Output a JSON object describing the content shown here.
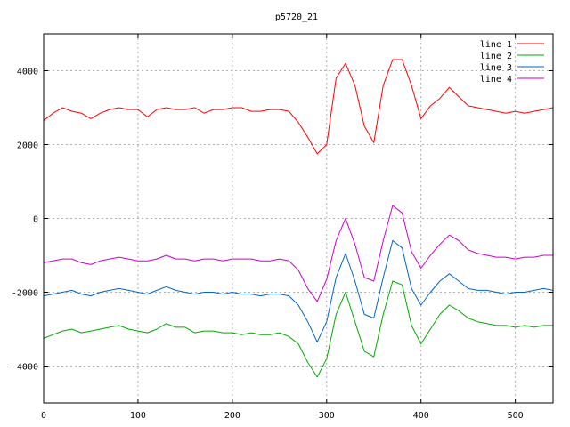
{
  "chart_data": {
    "type": "line",
    "title": "p5720_21",
    "xlabel": "",
    "ylabel": "",
    "xlim": [
      0,
      540
    ],
    "ylim": [
      -5000,
      5000
    ],
    "x_ticks": [
      0,
      100,
      200,
      300,
      400,
      500
    ],
    "y_ticks": [
      -4000,
      -2000,
      0,
      2000,
      4000
    ],
    "grid": true,
    "legend_position": "top-right",
    "x": [
      0,
      10,
      20,
      30,
      40,
      50,
      60,
      70,
      80,
      90,
      100,
      110,
      120,
      130,
      140,
      150,
      160,
      170,
      180,
      190,
      200,
      210,
      220,
      230,
      240,
      250,
      260,
      270,
      280,
      290,
      300,
      310,
      320,
      330,
      340,
      350,
      360,
      370,
      380,
      390,
      400,
      410,
      420,
      430,
      440,
      450,
      460,
      470,
      480,
      490,
      500,
      510,
      520,
      530,
      540
    ],
    "series": [
      {
        "name": "line 1",
        "color": "#ff0000",
        "values": [
          2650,
          2850,
          3000,
          2900,
          2850,
          2700,
          2850,
          2950,
          3000,
          2950,
          2950,
          2750,
          2950,
          3000,
          2950,
          2950,
          3000,
          2850,
          2950,
          2950,
          3000,
          3000,
          2900,
          2900,
          2950,
          2950,
          2900,
          2600,
          2200,
          1750,
          2000,
          3800,
          4200,
          3600,
          2500,
          2050,
          3600,
          4300,
          4300,
          3600,
          2700,
          3050,
          3250,
          3550,
          3300,
          3050,
          3000,
          2950,
          2900,
          2850,
          2900,
          2850,
          2900,
          2950,
          3000
        ]
      },
      {
        "name": "line 2",
        "color": "#00aa00",
        "values": [
          -3250,
          -3150,
          -3050,
          -3000,
          -3100,
          -3050,
          -3000,
          -2950,
          -2900,
          -3000,
          -3050,
          -3100,
          -3000,
          -2850,
          -2950,
          -2950,
          -3100,
          -3050,
          -3050,
          -3100,
          -3100,
          -3150,
          -3100,
          -3150,
          -3150,
          -3100,
          -3200,
          -3400,
          -3900,
          -4300,
          -3800,
          -2600,
          -2000,
          -2800,
          -3600,
          -3750,
          -2600,
          -1700,
          -1800,
          -2900,
          -3400,
          -3000,
          -2600,
          -2350,
          -2500,
          -2700,
          -2800,
          -2850,
          -2900,
          -2900,
          -2950,
          -2900,
          -2950,
          -2900,
          -2900
        ]
      },
      {
        "name": "line 3",
        "color": "#0066cc",
        "values": [
          -2100,
          -2050,
          -2000,
          -1950,
          -2050,
          -2100,
          -2000,
          -1950,
          -1900,
          -1950,
          -2000,
          -2050,
          -1950,
          -1850,
          -1950,
          -2000,
          -2050,
          -2000,
          -2000,
          -2050,
          -2000,
          -2050,
          -2050,
          -2100,
          -2050,
          -2050,
          -2100,
          -2350,
          -2800,
          -3350,
          -2800,
          -1600,
          -950,
          -1700,
          -2600,
          -2700,
          -1600,
          -600,
          -800,
          -1900,
          -2350,
          -2000,
          -1700,
          -1500,
          -1700,
          -1900,
          -1950,
          -1950,
          -2000,
          -2050,
          -2000,
          -2000,
          -1950,
          -1900,
          -1950
        ]
      },
      {
        "name": "line 4",
        "color": "#cc00cc",
        "values": [
          -1200,
          -1150,
          -1100,
          -1100,
          -1200,
          -1250,
          -1150,
          -1100,
          -1050,
          -1100,
          -1150,
          -1150,
          -1100,
          -1000,
          -1100,
          -1100,
          -1150,
          -1100,
          -1100,
          -1150,
          -1100,
          -1100,
          -1100,
          -1150,
          -1150,
          -1100,
          -1150,
          -1400,
          -1900,
          -2250,
          -1650,
          -600,
          0,
          -700,
          -1600,
          -1700,
          -600,
          350,
          150,
          -900,
          -1350,
          -1000,
          -700,
          -450,
          -600,
          -850,
          -950,
          -1000,
          -1050,
          -1050,
          -1100,
          -1050,
          -1050,
          -1000,
          -1000
        ]
      }
    ]
  }
}
